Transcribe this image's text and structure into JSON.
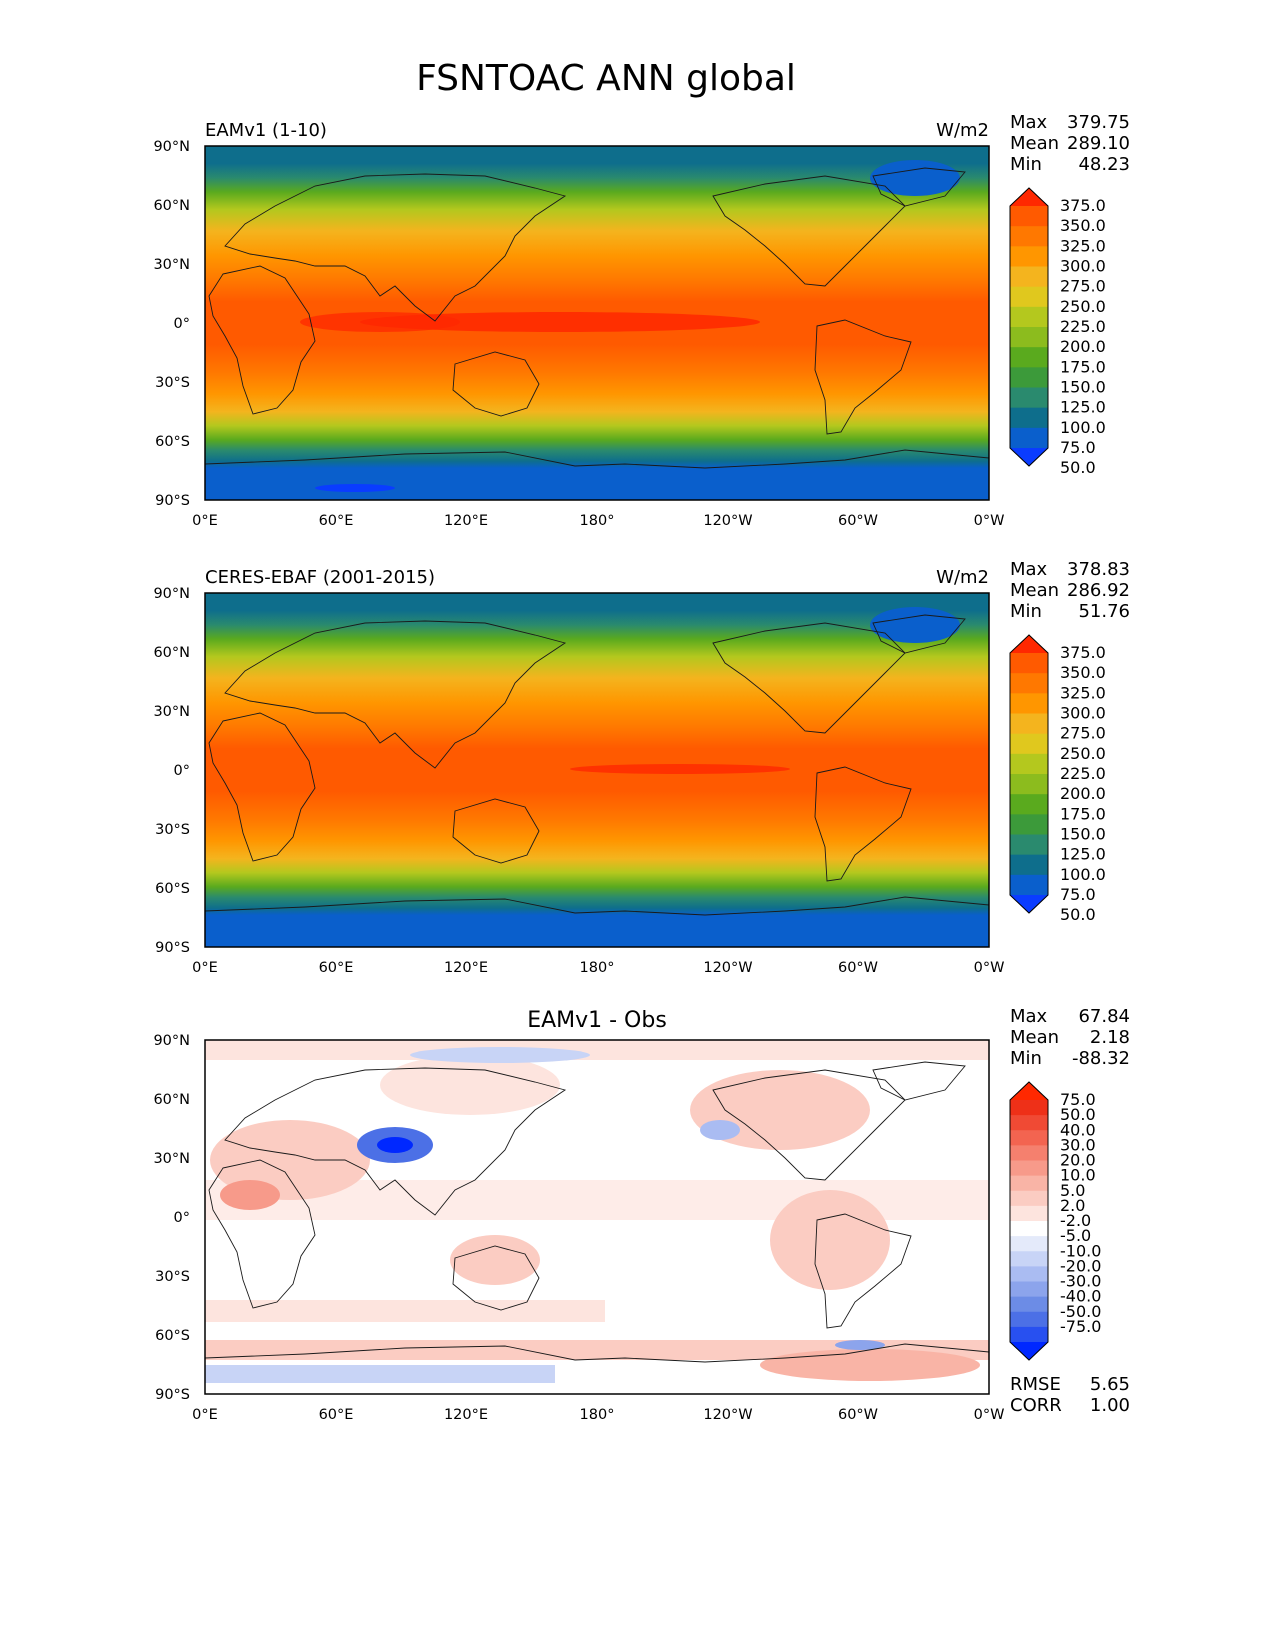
{
  "title": "FSNTOAC ANN global",
  "axes": {
    "y_ticks": [
      "90°N",
      "60°N",
      "30°N",
      "0°",
      "30°S",
      "60°S",
      "90°S"
    ],
    "x_ticks": [
      "0°E",
      "60°E",
      "120°E",
      "180°",
      "120°W",
      "60°W",
      "0°W"
    ]
  },
  "colors": {
    "sequential_levels": [
      "#0a3cff",
      "#0a5fcc",
      "#0e6e8c",
      "#2a8a6e",
      "#3c9a3a",
      "#5aaa1e",
      "#8cbc1e",
      "#b4c81e",
      "#e0c81e",
      "#f4b41e",
      "#ff9600",
      "#ff7800",
      "#ff5a00",
      "#ff2800"
    ],
    "diff_levels": [
      "#0028ff",
      "#2850f0",
      "#4c70e6",
      "#6c8ce6",
      "#8ca4ec",
      "#aabcf2",
      "#c8d4f6",
      "#e4eafa",
      "#ffffff",
      "#fde4de",
      "#fbccc2",
      "#f9b4a6",
      "#f79a8a",
      "#f5806e",
      "#f36450",
      "#f04a34",
      "#ee3018",
      "#ff2800"
    ]
  },
  "panels": [
    {
      "left_title": "EAMv1 (1-10)",
      "units": "W/m2",
      "stats": [
        {
          "label": "Max",
          "value": "379.75"
        },
        {
          "label": "Mean",
          "value": "289.10"
        },
        {
          "label": "Min",
          "value": "48.23"
        }
      ],
      "colorbar_labels": [
        "375.0",
        "350.0",
        "325.0",
        "300.0",
        "275.0",
        "250.0",
        "225.0",
        "200.0",
        "175.0",
        "150.0",
        "125.0",
        "100.0",
        "75.0",
        "50.0"
      ]
    },
    {
      "left_title": "CERES-EBAF (2001-2015)",
      "units": "W/m2",
      "stats": [
        {
          "label": "Max",
          "value": "378.83"
        },
        {
          "label": "Mean",
          "value": "286.92"
        },
        {
          "label": "Min",
          "value": "51.76"
        }
      ],
      "colorbar_labels": [
        "375.0",
        "350.0",
        "325.0",
        "300.0",
        "275.0",
        "250.0",
        "225.0",
        "200.0",
        "175.0",
        "150.0",
        "125.0",
        "100.0",
        "75.0",
        "50.0"
      ]
    },
    {
      "center_title": "EAMv1 - Obs",
      "stats": [
        {
          "label": "Max",
          "value": "67.84"
        },
        {
          "label": "Mean",
          "value": "2.18"
        },
        {
          "label": "Min",
          "value": "-88.32"
        }
      ],
      "colorbar_labels": [
        "75.0",
        "50.0",
        "40.0",
        "30.0",
        "20.0",
        "10.0",
        "5.0",
        "2.0",
        "-2.0",
        "-5.0",
        "-10.0",
        "-20.0",
        "-30.0",
        "-40.0",
        "-50.0",
        "-75.0"
      ],
      "bottom_stats": [
        {
          "label": "RMSE",
          "value": "5.65"
        },
        {
          "label": "CORR",
          "value": "1.00"
        }
      ]
    }
  ]
}
